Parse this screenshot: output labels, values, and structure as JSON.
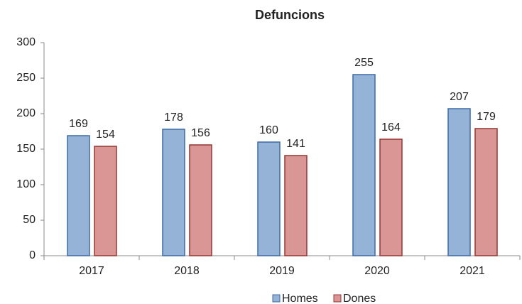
{
  "chart_data": {
    "type": "bar",
    "title": "Defuncions",
    "categories": [
      "2017",
      "2018",
      "2019",
      "2020",
      "2021"
    ],
    "series": [
      {
        "name": "Homes",
        "color": "#95b3d7",
        "values": [
          169,
          178,
          160,
          255,
          207
        ]
      },
      {
        "name": "Dones",
        "color": "#d99694",
        "values": [
          154,
          156,
          141,
          164,
          179
        ]
      }
    ],
    "ylim": [
      0,
      300
    ],
    "yticks": [
      0,
      50,
      100,
      150,
      200,
      250,
      300
    ],
    "grid": false,
    "legend": "bottom"
  }
}
